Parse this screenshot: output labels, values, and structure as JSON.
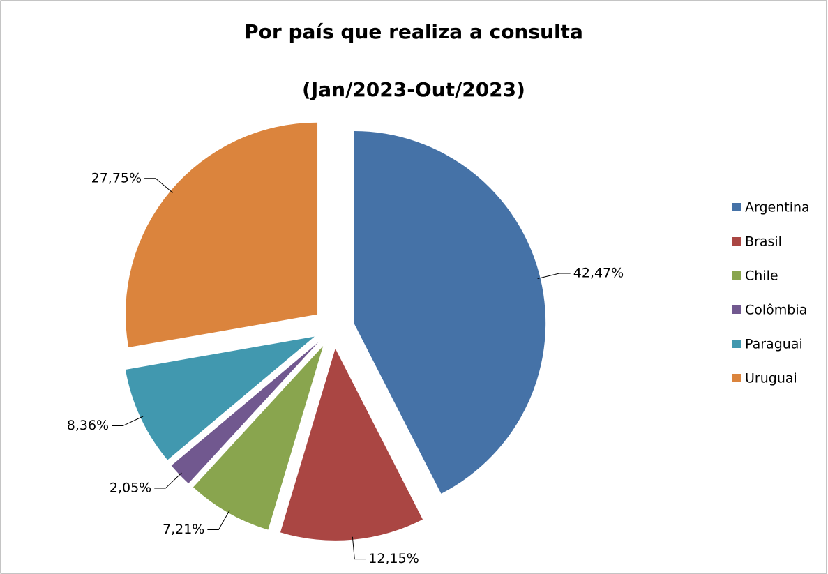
{
  "chart_data": {
    "type": "pie",
    "title": "Por país que realiza a consulta",
    "subtitle": "(Jan/2023-Out/2023)",
    "categories": [
      "Argentina",
      "Brasil",
      "Chile",
      "Colômbia",
      "Paraguai",
      "Uruguai"
    ],
    "values": [
      42.47,
      12.15,
      7.21,
      2.05,
      8.36,
      27.75
    ],
    "value_labels": [
      "42,47%",
      "12,15%",
      "7,21%",
      "2,05%",
      "8,36%",
      "27,75%"
    ],
    "colors": [
      "#4572a7",
      "#aa4643",
      "#89a54e",
      "#71588f",
      "#4198af",
      "#db843d"
    ],
    "legend": "right"
  }
}
